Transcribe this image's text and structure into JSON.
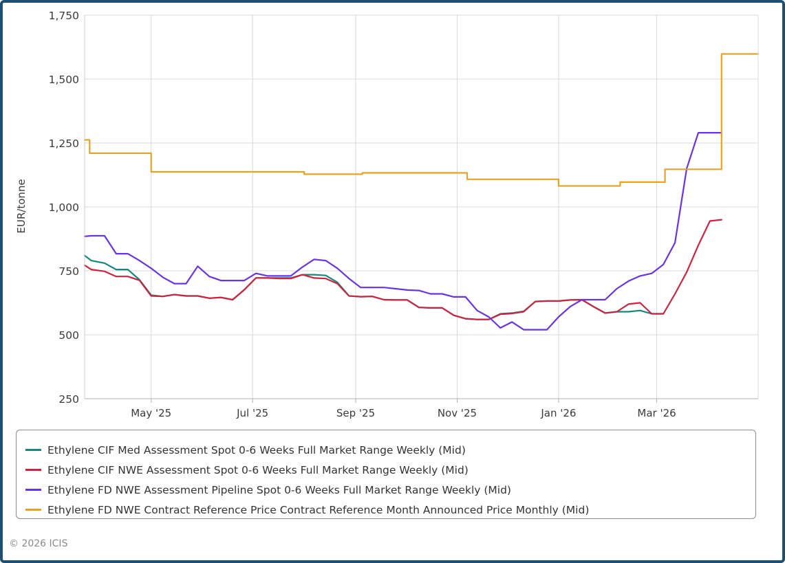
{
  "chart_data": {
    "type": "line",
    "ylabel": "EUR/tonne",
    "ylim": [
      250,
      1750
    ],
    "yticks": [
      250,
      500,
      750,
      1000,
      1250,
      1500,
      1750
    ],
    "ytick_labels": [
      "250",
      "500",
      "750",
      "1,000",
      "1,250",
      "1,500",
      "1,750"
    ],
    "xlim": [
      "2025-03-22",
      "2026-05-01"
    ],
    "xticks": [
      "2025-05-01",
      "2025-07-01",
      "2025-09-01",
      "2025-11-01",
      "2026-01-01",
      "2026-03-01"
    ],
    "xtick_labels": [
      "May '25",
      "Jul '25",
      "Sep '25",
      "Nov '25",
      "Jan '26",
      "Mar '26"
    ],
    "grid": true,
    "legend": "bottom",
    "series": [
      {
        "name": "Ethylene CIF Med Assessment Spot 0-6 Weeks Full Market Range Weekly (Mid)",
        "color": "#0f8a7e",
        "step": false,
        "points": [
          [
            "2025-03-22",
            810
          ],
          [
            "2025-03-26",
            790
          ],
          [
            "2025-04-03",
            780
          ],
          [
            "2025-04-10",
            755
          ],
          [
            "2025-04-17",
            755
          ],
          [
            "2025-04-24",
            715
          ],
          [
            "2025-05-01",
            655
          ],
          [
            "2025-05-08",
            650
          ],
          [
            "2025-05-15",
            657
          ],
          [
            "2025-05-22",
            652
          ],
          [
            "2025-05-29",
            652
          ],
          [
            "2025-06-05",
            643
          ],
          [
            "2025-06-12",
            646
          ],
          [
            "2025-06-19",
            637
          ],
          [
            "2025-06-26",
            676
          ],
          [
            "2025-07-03",
            722
          ],
          [
            "2025-07-10",
            722
          ],
          [
            "2025-07-17",
            722
          ],
          [
            "2025-07-24",
            722
          ],
          [
            "2025-07-31",
            735
          ],
          [
            "2025-08-07",
            735
          ],
          [
            "2025-08-14",
            732
          ],
          [
            "2025-08-21",
            705
          ],
          [
            "2025-08-28",
            652
          ],
          [
            "2025-09-04",
            649
          ],
          [
            "2025-09-11",
            650
          ],
          [
            "2025-09-18",
            637
          ],
          [
            "2025-09-25",
            636
          ],
          [
            "2025-10-02",
            636
          ],
          [
            "2025-10-09",
            607
          ],
          [
            "2025-10-16",
            605
          ],
          [
            "2025-10-23",
            605
          ],
          [
            "2025-10-30",
            576
          ],
          [
            "2025-11-06",
            563
          ],
          [
            "2025-11-13",
            560
          ],
          [
            "2025-11-20",
            560
          ],
          [
            "2025-11-27",
            582
          ],
          [
            "2025-12-04",
            585
          ],
          [
            "2025-12-11",
            592
          ],
          [
            "2025-12-18",
            630
          ],
          [
            "2025-12-25",
            632
          ],
          [
            "2026-01-01",
            632
          ],
          [
            "2026-01-08",
            636
          ],
          [
            "2026-01-15",
            637
          ],
          [
            "2026-01-22",
            610
          ],
          [
            "2026-01-29",
            585
          ],
          [
            "2026-02-05",
            590
          ],
          [
            "2026-02-12",
            590
          ],
          [
            "2026-02-19",
            595
          ],
          [
            "2026-02-26",
            582
          ],
          [
            "2026-03-05",
            582
          ]
        ]
      },
      {
        "name": "Ethylene CIF NWE Assessment Spot 0-6 Weeks Full Market Range Weekly (Mid)",
        "color": "#d0223e",
        "step": false,
        "points": [
          [
            "2025-03-22",
            772
          ],
          [
            "2025-03-26",
            755
          ],
          [
            "2025-04-03",
            748
          ],
          [
            "2025-04-10",
            728
          ],
          [
            "2025-04-17",
            728
          ],
          [
            "2025-04-24",
            713
          ],
          [
            "2025-05-01",
            652
          ],
          [
            "2025-05-08",
            650
          ],
          [
            "2025-05-15",
            657
          ],
          [
            "2025-05-22",
            652
          ],
          [
            "2025-05-29",
            652
          ],
          [
            "2025-06-05",
            643
          ],
          [
            "2025-06-12",
            646
          ],
          [
            "2025-06-19",
            637
          ],
          [
            "2025-06-26",
            676
          ],
          [
            "2025-07-03",
            722
          ],
          [
            "2025-07-10",
            722
          ],
          [
            "2025-07-17",
            720
          ],
          [
            "2025-07-24",
            720
          ],
          [
            "2025-07-31",
            735
          ],
          [
            "2025-08-07",
            722
          ],
          [
            "2025-08-14",
            720
          ],
          [
            "2025-08-21",
            700
          ],
          [
            "2025-08-28",
            652
          ],
          [
            "2025-09-04",
            649
          ],
          [
            "2025-09-11",
            650
          ],
          [
            "2025-09-18",
            637
          ],
          [
            "2025-09-25",
            636
          ],
          [
            "2025-10-02",
            636
          ],
          [
            "2025-10-09",
            607
          ],
          [
            "2025-10-16",
            605
          ],
          [
            "2025-10-23",
            605
          ],
          [
            "2025-10-30",
            576
          ],
          [
            "2025-11-06",
            563
          ],
          [
            "2025-11-13",
            560
          ],
          [
            "2025-11-20",
            560
          ],
          [
            "2025-11-27",
            580
          ],
          [
            "2025-12-04",
            583
          ],
          [
            "2025-12-11",
            590
          ],
          [
            "2025-12-18",
            630
          ],
          [
            "2025-12-25",
            632
          ],
          [
            "2026-01-01",
            632
          ],
          [
            "2026-01-08",
            636
          ],
          [
            "2026-01-15",
            637
          ],
          [
            "2026-01-22",
            610
          ],
          [
            "2026-01-29",
            585
          ],
          [
            "2026-02-05",
            590
          ],
          [
            "2026-02-12",
            620
          ],
          [
            "2026-02-19",
            625
          ],
          [
            "2026-02-26",
            582
          ],
          [
            "2026-03-05",
            582
          ],
          [
            "2026-03-12",
            660
          ],
          [
            "2026-03-19",
            745
          ],
          [
            "2026-03-26",
            850
          ],
          [
            "2026-04-02",
            945
          ],
          [
            "2026-04-09",
            950
          ]
        ]
      },
      {
        "name": "Ethylene FD NWE Assessment Pipeline Spot 0-6 Weeks Full Market Range Weekly (Mid)",
        "color": "#6a32e6",
        "step": false,
        "points": [
          [
            "2025-03-22",
            885
          ],
          [
            "2025-03-26",
            887
          ],
          [
            "2025-04-03",
            887
          ],
          [
            "2025-04-10",
            817
          ],
          [
            "2025-04-17",
            817
          ],
          [
            "2025-04-24",
            790
          ],
          [
            "2025-05-01",
            760
          ],
          [
            "2025-05-08",
            725
          ],
          [
            "2025-05-15",
            700
          ],
          [
            "2025-05-22",
            700
          ],
          [
            "2025-05-29",
            768
          ],
          [
            "2025-06-05",
            728
          ],
          [
            "2025-06-12",
            712
          ],
          [
            "2025-06-19",
            712
          ],
          [
            "2025-06-26",
            712
          ],
          [
            "2025-07-03",
            740
          ],
          [
            "2025-07-10",
            730
          ],
          [
            "2025-07-17",
            730
          ],
          [
            "2025-07-24",
            730
          ],
          [
            "2025-07-31",
            765
          ],
          [
            "2025-08-07",
            795
          ],
          [
            "2025-08-14",
            790
          ],
          [
            "2025-08-21",
            760
          ],
          [
            "2025-08-28",
            720
          ],
          [
            "2025-09-04",
            685
          ],
          [
            "2025-09-11",
            685
          ],
          [
            "2025-09-18",
            685
          ],
          [
            "2025-09-25",
            680
          ],
          [
            "2025-10-02",
            675
          ],
          [
            "2025-10-09",
            673
          ],
          [
            "2025-10-16",
            660
          ],
          [
            "2025-10-23",
            660
          ],
          [
            "2025-10-30",
            648
          ],
          [
            "2025-11-06",
            648
          ],
          [
            "2025-11-13",
            595
          ],
          [
            "2025-11-20",
            570
          ],
          [
            "2025-11-27",
            527
          ],
          [
            "2025-12-04",
            550
          ],
          [
            "2025-12-11",
            520
          ],
          [
            "2025-12-18",
            520
          ],
          [
            "2025-12-25",
            520
          ],
          [
            "2026-01-01",
            570
          ],
          [
            "2026-01-08",
            610
          ],
          [
            "2026-01-15",
            637
          ],
          [
            "2026-01-22",
            637
          ],
          [
            "2026-01-29",
            637
          ],
          [
            "2026-02-05",
            680
          ],
          [
            "2026-02-12",
            710
          ],
          [
            "2026-02-19",
            730
          ],
          [
            "2026-02-26",
            740
          ],
          [
            "2026-03-05",
            775
          ],
          [
            "2026-03-12",
            860
          ],
          [
            "2026-03-19",
            1150
          ],
          [
            "2026-03-26",
            1290
          ],
          [
            "2026-04-02",
            1290
          ],
          [
            "2026-04-09",
            1290
          ]
        ]
      },
      {
        "name": "Ethylene FD NWE Contract Reference Price Contract Reference Month Announced Price Monthly (Mid)",
        "color": "#e9a221",
        "step": true,
        "points": [
          [
            "2025-03-22",
            1262
          ],
          [
            "2025-03-25",
            1210
          ],
          [
            "2025-05-01",
            1137
          ],
          [
            "2025-08-01",
            1128
          ],
          [
            "2025-09-05",
            1133
          ],
          [
            "2025-11-07",
            1108
          ],
          [
            "2026-01-01",
            1082
          ],
          [
            "2026-02-07",
            1097
          ],
          [
            "2026-03-06",
            1147
          ],
          [
            "2026-04-09",
            1598
          ],
          [
            "2026-05-01",
            1598
          ]
        ]
      }
    ]
  },
  "copyright": "© 2026 ICIS"
}
